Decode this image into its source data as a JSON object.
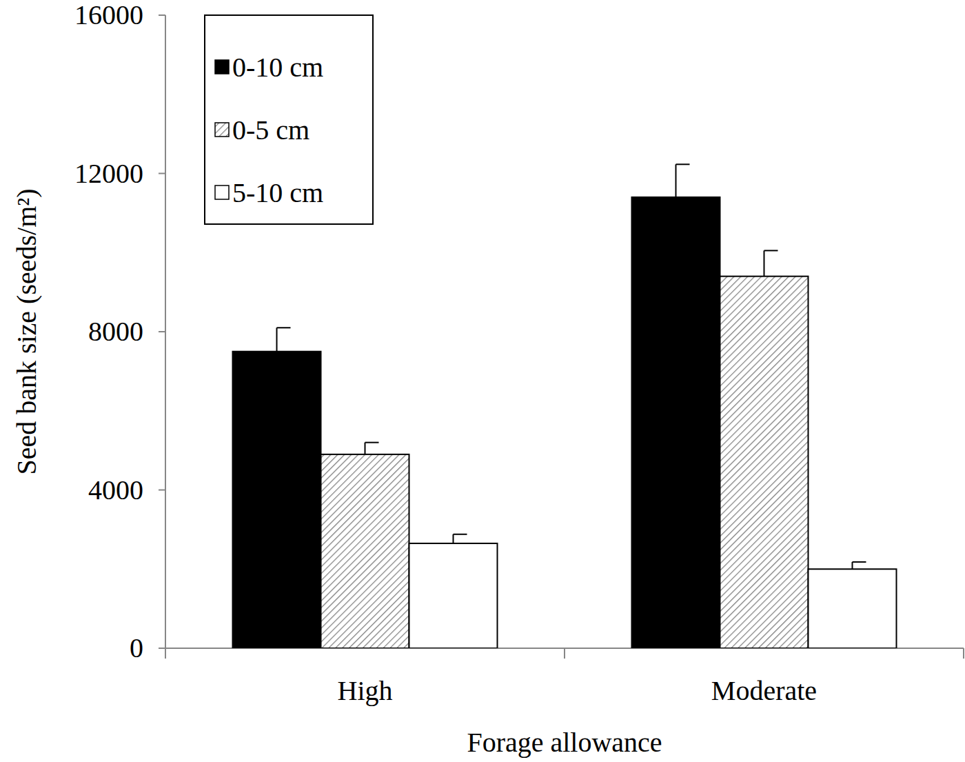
{
  "chart_data": {
    "type": "bar",
    "x_label": "Forage allowance",
    "y_label": "Seed bank size (seeds/m²)",
    "categories": [
      "High",
      "Moderate"
    ],
    "series": [
      {
        "name": "0-10 cm",
        "color": "#000000",
        "values": [
          7500,
          11400
        ],
        "errors": [
          600,
          830
        ]
      },
      {
        "name": "0-5 cm",
        "color": "#7f7f7f",
        "marker": "hatch",
        "values": [
          4900,
          9400
        ],
        "errors": [
          300,
          650
        ]
      },
      {
        "name": "5-10 cm",
        "color": "#ffffff",
        "values": [
          2650,
          2000
        ],
        "errors": [
          230,
          180
        ]
      }
    ],
    "ylim": [
      0,
      16000
    ],
    "yticks": [
      0,
      4000,
      8000,
      12000,
      16000
    ],
    "grid": false,
    "legend": "top-left"
  }
}
